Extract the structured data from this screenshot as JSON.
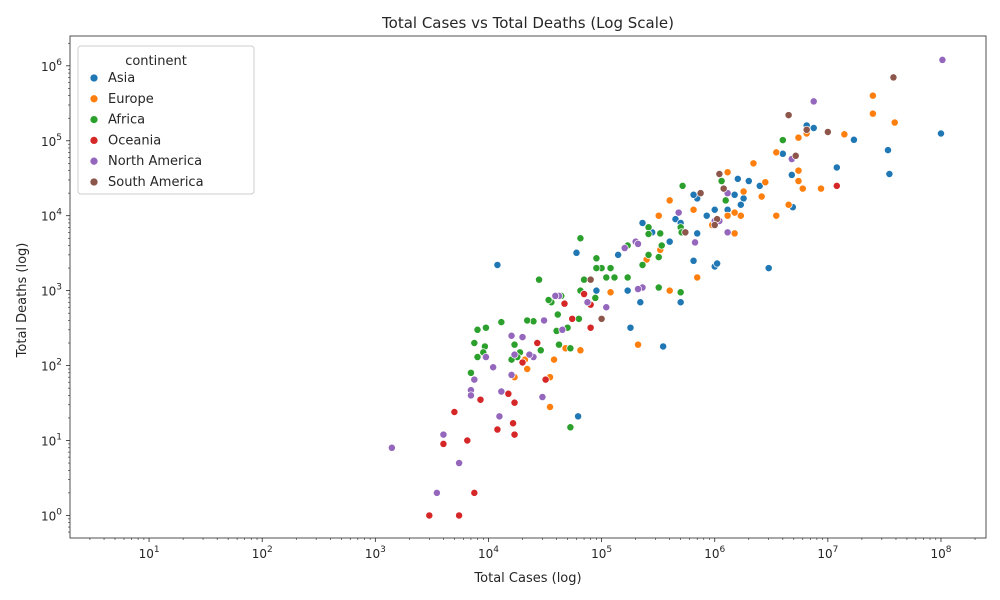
{
  "chart_data": {
    "type": "scatter",
    "title": "Total Cases vs Total Deaths (Log Scale)",
    "xlabel": "Total Cases (log)",
    "ylabel": "Total Deaths (log)",
    "xscale": "log",
    "yscale": "log",
    "xlim": [
      2,
      250000000
    ],
    "ylim": [
      0.5,
      2500000
    ],
    "x_ticks": [
      {
        "value": 10,
        "base": "10",
        "exp": "1"
      },
      {
        "value": 100,
        "base": "10",
        "exp": "2"
      },
      {
        "value": 1000,
        "base": "10",
        "exp": "3"
      },
      {
        "value": 10000,
        "base": "10",
        "exp": "4"
      },
      {
        "value": 100000,
        "base": "10",
        "exp": "5"
      },
      {
        "value": 1000000,
        "base": "10",
        "exp": "6"
      },
      {
        "value": 10000000,
        "base": "10",
        "exp": "7"
      },
      {
        "value": 100000000,
        "base": "10",
        "exp": "8"
      }
    ],
    "y_ticks": [
      {
        "value": 1,
        "base": "10",
        "exp": "0"
      },
      {
        "value": 10,
        "base": "10",
        "exp": "1"
      },
      {
        "value": 100,
        "base": "10",
        "exp": "2"
      },
      {
        "value": 1000,
        "base": "10",
        "exp": "3"
      },
      {
        "value": 10000,
        "base": "10",
        "exp": "4"
      },
      {
        "value": 100000,
        "base": "10",
        "exp": "5"
      },
      {
        "value": 1000000,
        "base": "10",
        "exp": "6"
      }
    ],
    "grid": false,
    "legend": {
      "title": "continent",
      "placement": "top-left"
    },
    "series": [
      {
        "name": "Asia",
        "color": "#1f77b4",
        "points": [
          [
            100000000,
            125000
          ],
          [
            34000000,
            75000
          ],
          [
            35000000,
            36000
          ],
          [
            17000000,
            103000
          ],
          [
            12000000,
            44000
          ],
          [
            7500000,
            148000
          ],
          [
            6500000,
            160000
          ],
          [
            4800000,
            35000
          ],
          [
            4900000,
            13000
          ],
          [
            4000000,
            67000
          ],
          [
            2500000,
            25000
          ],
          [
            2000000,
            29000
          ],
          [
            1800000,
            17000
          ],
          [
            1700000,
            14000
          ],
          [
            1600000,
            31000
          ],
          [
            1500000,
            19000
          ],
          [
            1300000,
            12000
          ],
          [
            1000000,
            12000
          ],
          [
            850000,
            10000
          ],
          [
            700000,
            17000
          ],
          [
            650000,
            19000
          ],
          [
            450000,
            9000
          ],
          [
            500000,
            8000
          ],
          [
            400000,
            4500
          ],
          [
            280000,
            6000
          ],
          [
            230000,
            8000
          ],
          [
            140000,
            3000
          ],
          [
            90000,
            1000
          ],
          [
            12000,
            2200
          ],
          [
            60000,
            3200
          ],
          [
            650000,
            2500
          ],
          [
            700000,
            1500
          ],
          [
            1000000,
            2100
          ],
          [
            1050000,
            2300
          ],
          [
            3000000,
            2000
          ],
          [
            500000,
            700
          ],
          [
            220000,
            700
          ],
          [
            180000,
            320
          ],
          [
            350000,
            180
          ],
          [
            62000,
            21
          ],
          [
            170000,
            1000
          ],
          [
            700000,
            5800
          ]
        ]
      },
      {
        "name": "Europe",
        "color": "#ff7f0e",
        "points": [
          [
            39000000,
            175000
          ],
          [
            25000000,
            400000
          ],
          [
            25000000,
            230000
          ],
          [
            14000000,
            122000
          ],
          [
            8700000,
            23000
          ],
          [
            6500000,
            125000
          ],
          [
            5500000,
            110000
          ],
          [
            5500000,
            40000
          ],
          [
            5500000,
            29000
          ],
          [
            6000000,
            23000
          ],
          [
            4500000,
            14000
          ],
          [
            3500000,
            10000
          ],
          [
            2800000,
            28000
          ],
          [
            2600000,
            18000
          ],
          [
            2200000,
            50000
          ],
          [
            1800000,
            21000
          ],
          [
            1700000,
            10000
          ],
          [
            1500000,
            11000
          ],
          [
            1300000,
            38000
          ],
          [
            1300000,
            10000
          ],
          [
            1500000,
            5800
          ],
          [
            3500000,
            70000
          ],
          [
            950000,
            7500
          ],
          [
            650000,
            12000
          ],
          [
            700000,
            1500
          ],
          [
            400000,
            16000
          ],
          [
            330000,
            3500
          ],
          [
            320000,
            10000
          ],
          [
            250000,
            2600
          ],
          [
            400000,
            1000
          ],
          [
            210000,
            190
          ],
          [
            120000,
            950
          ],
          [
            65000,
            160
          ],
          [
            48000,
            170
          ],
          [
            38000,
            120
          ],
          [
            35000,
            70
          ],
          [
            22000,
            90
          ],
          [
            21000,
            120
          ],
          [
            17000,
            70
          ],
          [
            35000,
            28
          ]
        ]
      },
      {
        "name": "Africa",
        "color": "#2ca02c",
        "points": [
          [
            4000000,
            102000
          ],
          [
            1250000,
            16000
          ],
          [
            1150000,
            29000
          ],
          [
            520000,
            25000
          ],
          [
            500000,
            7000
          ],
          [
            510000,
            6000
          ],
          [
            330000,
            5800
          ],
          [
            340000,
            4000
          ],
          [
            260000,
            7000
          ],
          [
            260000,
            5700
          ],
          [
            260000,
            3000
          ],
          [
            230000,
            2200
          ],
          [
            170000,
            4000
          ],
          [
            170000,
            1500
          ],
          [
            320000,
            2800
          ],
          [
            320000,
            1100
          ],
          [
            120000,
            2000
          ],
          [
            110000,
            1500
          ],
          [
            100000,
            2000
          ],
          [
            90000,
            2000
          ],
          [
            90000,
            2700
          ],
          [
            88000,
            800
          ],
          [
            70000,
            1400
          ],
          [
            65000,
            5000
          ],
          [
            65000,
            1000
          ],
          [
            63000,
            420
          ],
          [
            53000,
            170
          ],
          [
            50000,
            320
          ],
          [
            44000,
            850
          ],
          [
            41000,
            480
          ],
          [
            40000,
            290
          ],
          [
            36000,
            700
          ],
          [
            34000,
            750
          ],
          [
            28000,
            1400
          ],
          [
            29000,
            160
          ],
          [
            25000,
            390
          ],
          [
            22000,
            400
          ],
          [
            19000,
            150
          ],
          [
            18000,
            130
          ],
          [
            17000,
            190
          ],
          [
            16000,
            120
          ],
          [
            13000,
            380
          ],
          [
            9500,
            320
          ],
          [
            9300,
            180
          ],
          [
            9000,
            150
          ],
          [
            8000,
            300
          ],
          [
            7500,
            200
          ],
          [
            8000,
            130
          ],
          [
            7000,
            80
          ],
          [
            53000,
            15
          ],
          [
            500000,
            950
          ],
          [
            130000,
            1500
          ],
          [
            42000,
            190
          ]
        ]
      },
      {
        "name": "Oceania",
        "color": "#d62728",
        "points": [
          [
            12000000,
            25000
          ],
          [
            80000,
            320
          ],
          [
            80000,
            650
          ],
          [
            70000,
            900
          ],
          [
            55000,
            420
          ],
          [
            47000,
            670
          ],
          [
            32000,
            65
          ],
          [
            27000,
            200
          ],
          [
            20000,
            110
          ],
          [
            17000,
            32
          ],
          [
            16500,
            17
          ],
          [
            17000,
            12
          ],
          [
            15000,
            42
          ],
          [
            12000,
            14
          ],
          [
            8500,
            35
          ],
          [
            7500,
            2
          ],
          [
            6500,
            10
          ],
          [
            5000,
            24
          ],
          [
            5500,
            1
          ],
          [
            4000,
            9
          ],
          [
            3000,
            1
          ]
        ]
      },
      {
        "name": "North America",
        "color": "#9467bd",
        "points": [
          [
            103000000,
            1200000
          ],
          [
            7500000,
            335000
          ],
          [
            4800000,
            57000
          ],
          [
            1300000,
            20000
          ],
          [
            1300000,
            6000
          ],
          [
            1100000,
            8500
          ],
          [
            1000000,
            8500
          ],
          [
            670000,
            4400
          ],
          [
            480000,
            11000
          ],
          [
            200000,
            4500
          ],
          [
            210000,
            4200
          ],
          [
            230000,
            1100
          ],
          [
            210000,
            1050
          ],
          [
            160000,
            3700
          ],
          [
            110000,
            600
          ],
          [
            75000,
            700
          ],
          [
            45000,
            300
          ],
          [
            42000,
            850
          ],
          [
            39000,
            850
          ],
          [
            31000,
            400
          ],
          [
            30000,
            38
          ],
          [
            25000,
            130
          ],
          [
            23000,
            140
          ],
          [
            20000,
            240
          ],
          [
            17000,
            140
          ],
          [
            16000,
            250
          ],
          [
            16000,
            75
          ],
          [
            13000,
            45
          ],
          [
            12500,
            21
          ],
          [
            11000,
            95
          ],
          [
            9500,
            130
          ],
          [
            7500,
            65
          ],
          [
            7000,
            47
          ],
          [
            7000,
            40
          ],
          [
            5500,
            5
          ],
          [
            4000,
            12
          ],
          [
            3500,
            2
          ],
          [
            1400,
            8
          ]
        ]
      },
      {
        "name": "South America",
        "color": "#8c564b",
        "points": [
          [
            38000000,
            700000
          ],
          [
            10000000,
            131000
          ],
          [
            6500000,
            140000
          ],
          [
            4500000,
            220000
          ],
          [
            5200000,
            63000
          ],
          [
            1100000,
            36000
          ],
          [
            1200000,
            23000
          ],
          [
            1050000,
            9000
          ],
          [
            1000000,
            7500
          ],
          [
            750000,
            20000
          ],
          [
            550000,
            6000
          ],
          [
            100000,
            420
          ],
          [
            80000,
            1400
          ]
        ]
      }
    ]
  }
}
